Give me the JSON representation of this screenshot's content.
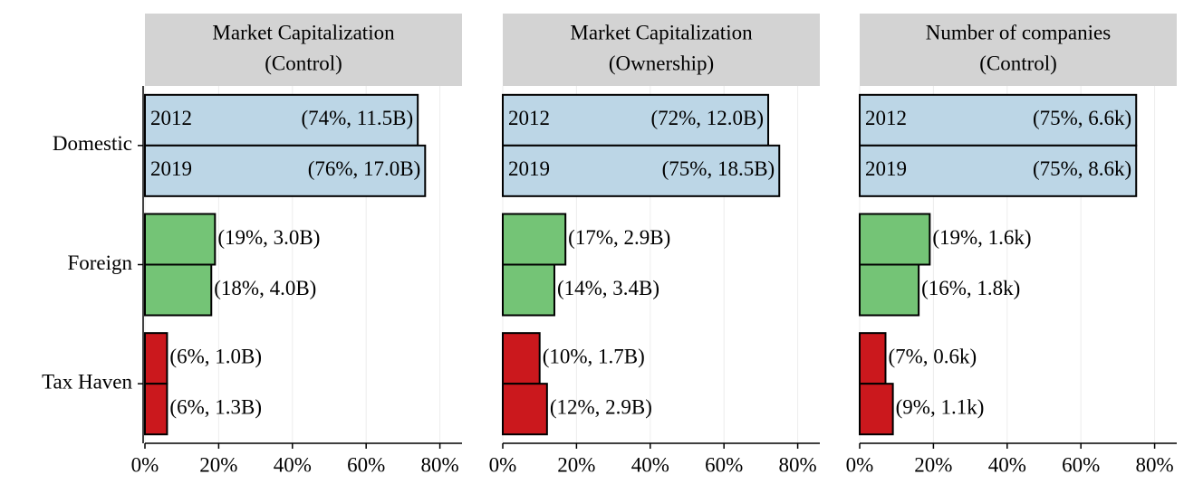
{
  "chart_data": [
    {
      "type": "bar",
      "orientation": "horizontal",
      "title": "Market Capitalization",
      "subtitle": "(Control)",
      "categories": [
        "Domestic",
        "Foreign",
        "Tax Haven"
      ],
      "colors": [
        "#bcd6e6",
        "#74c476",
        "#cb181d"
      ],
      "series": [
        {
          "name": "2012",
          "values": [
            74,
            19,
            6
          ],
          "value_labels": [
            "(74%, 11.5B)",
            "(19%, 3.0B)",
            "(6%, 1.0B)"
          ]
        },
        {
          "name": "2019",
          "values": [
            76,
            18,
            6
          ],
          "value_labels": [
            "(76%, 17.0B)",
            "(18%, 4.0B)",
            "(6%, 1.3B)"
          ]
        }
      ],
      "xlim": [
        0,
        86
      ],
      "xticks": [
        {
          "value": 0,
          "label": "0%"
        },
        {
          "value": 20,
          "label": "20%"
        },
        {
          "value": 40,
          "label": "40%"
        },
        {
          "value": 60,
          "label": "60%"
        },
        {
          "value": 80,
          "label": "80%"
        }
      ],
      "grid": true
    },
    {
      "type": "bar",
      "orientation": "horizontal",
      "title": "Market Capitalization",
      "subtitle": "(Ownership)",
      "categories": [
        "Domestic",
        "Foreign",
        "Tax Haven"
      ],
      "colors": [
        "#bcd6e6",
        "#74c476",
        "#cb181d"
      ],
      "series": [
        {
          "name": "2012",
          "values": [
            72,
            17,
            10
          ],
          "value_labels": [
            "(72%, 12.0B)",
            "(17%, 2.9B)",
            "(10%, 1.7B)"
          ]
        },
        {
          "name": "2019",
          "values": [
            75,
            14,
            12
          ],
          "value_labels": [
            "(75%, 18.5B)",
            "(14%, 3.4B)",
            "(12%, 2.9B)"
          ]
        }
      ],
      "xlim": [
        0,
        86
      ],
      "xticks": [
        {
          "value": 0,
          "label": "0%"
        },
        {
          "value": 20,
          "label": "20%"
        },
        {
          "value": 40,
          "label": "40%"
        },
        {
          "value": 60,
          "label": "60%"
        },
        {
          "value": 80,
          "label": "80%"
        }
      ],
      "grid": true
    },
    {
      "type": "bar",
      "orientation": "horizontal",
      "title": "Number of companies",
      "subtitle": "(Control)",
      "categories": [
        "Domestic",
        "Foreign",
        "Tax Haven"
      ],
      "colors": [
        "#bcd6e6",
        "#74c476",
        "#cb181d"
      ],
      "series": [
        {
          "name": "2012",
          "values": [
            75,
            19,
            7
          ],
          "value_labels": [
            "(75%, 6.6k)",
            "(19%, 1.6k)",
            "(7%, 0.6k)"
          ]
        },
        {
          "name": "2019",
          "values": [
            75,
            16,
            9
          ],
          "value_labels": [
            "(75%, 8.6k)",
            "(16%, 1.8k)",
            "(9%, 1.1k)"
          ]
        }
      ],
      "xlim": [
        0,
        86
      ],
      "xticks": [
        {
          "value": 0,
          "label": "0%"
        },
        {
          "value": 20,
          "label": "20%"
        },
        {
          "value": 40,
          "label": "40%"
        },
        {
          "value": 60,
          "label": "60%"
        },
        {
          "value": 80,
          "label": "80%"
        }
      ],
      "grid": true
    }
  ]
}
